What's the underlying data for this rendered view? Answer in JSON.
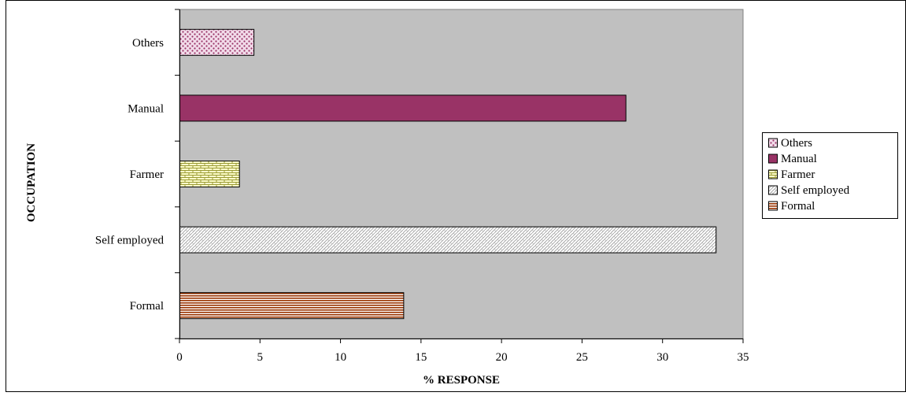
{
  "chart_data": {
    "type": "bar",
    "orientation": "horizontal",
    "title": "",
    "xlabel": "% RESPONSE",
    "ylabel": "OCCUPATION",
    "xlim": [
      0,
      35
    ],
    "xticks": [
      "0",
      "5",
      "10",
      "15",
      "20",
      "25",
      "30",
      "35"
    ],
    "categories": [
      "Others",
      "Manual",
      "Farmer",
      "Self employed",
      "Formal"
    ],
    "values": [
      4.6,
      27.7,
      3.7,
      33.3,
      13.9
    ],
    "grid": false,
    "legend_position": "right",
    "legend": [
      "Others",
      "Manual",
      "Farmer",
      "Self employed",
      "Formal"
    ],
    "colors": {
      "plot_background": "#c0c0c0",
      "others": "#f2dcea",
      "others_dots": "#993366",
      "manual": "#993366",
      "farmer": "#ffffcc",
      "farmer_brick": "#999933",
      "self_employed": "#ffffff",
      "self_employed_pattern": "#9a9a9a",
      "formal": "#ffffff",
      "formal_stripes": "#993300"
    }
  }
}
